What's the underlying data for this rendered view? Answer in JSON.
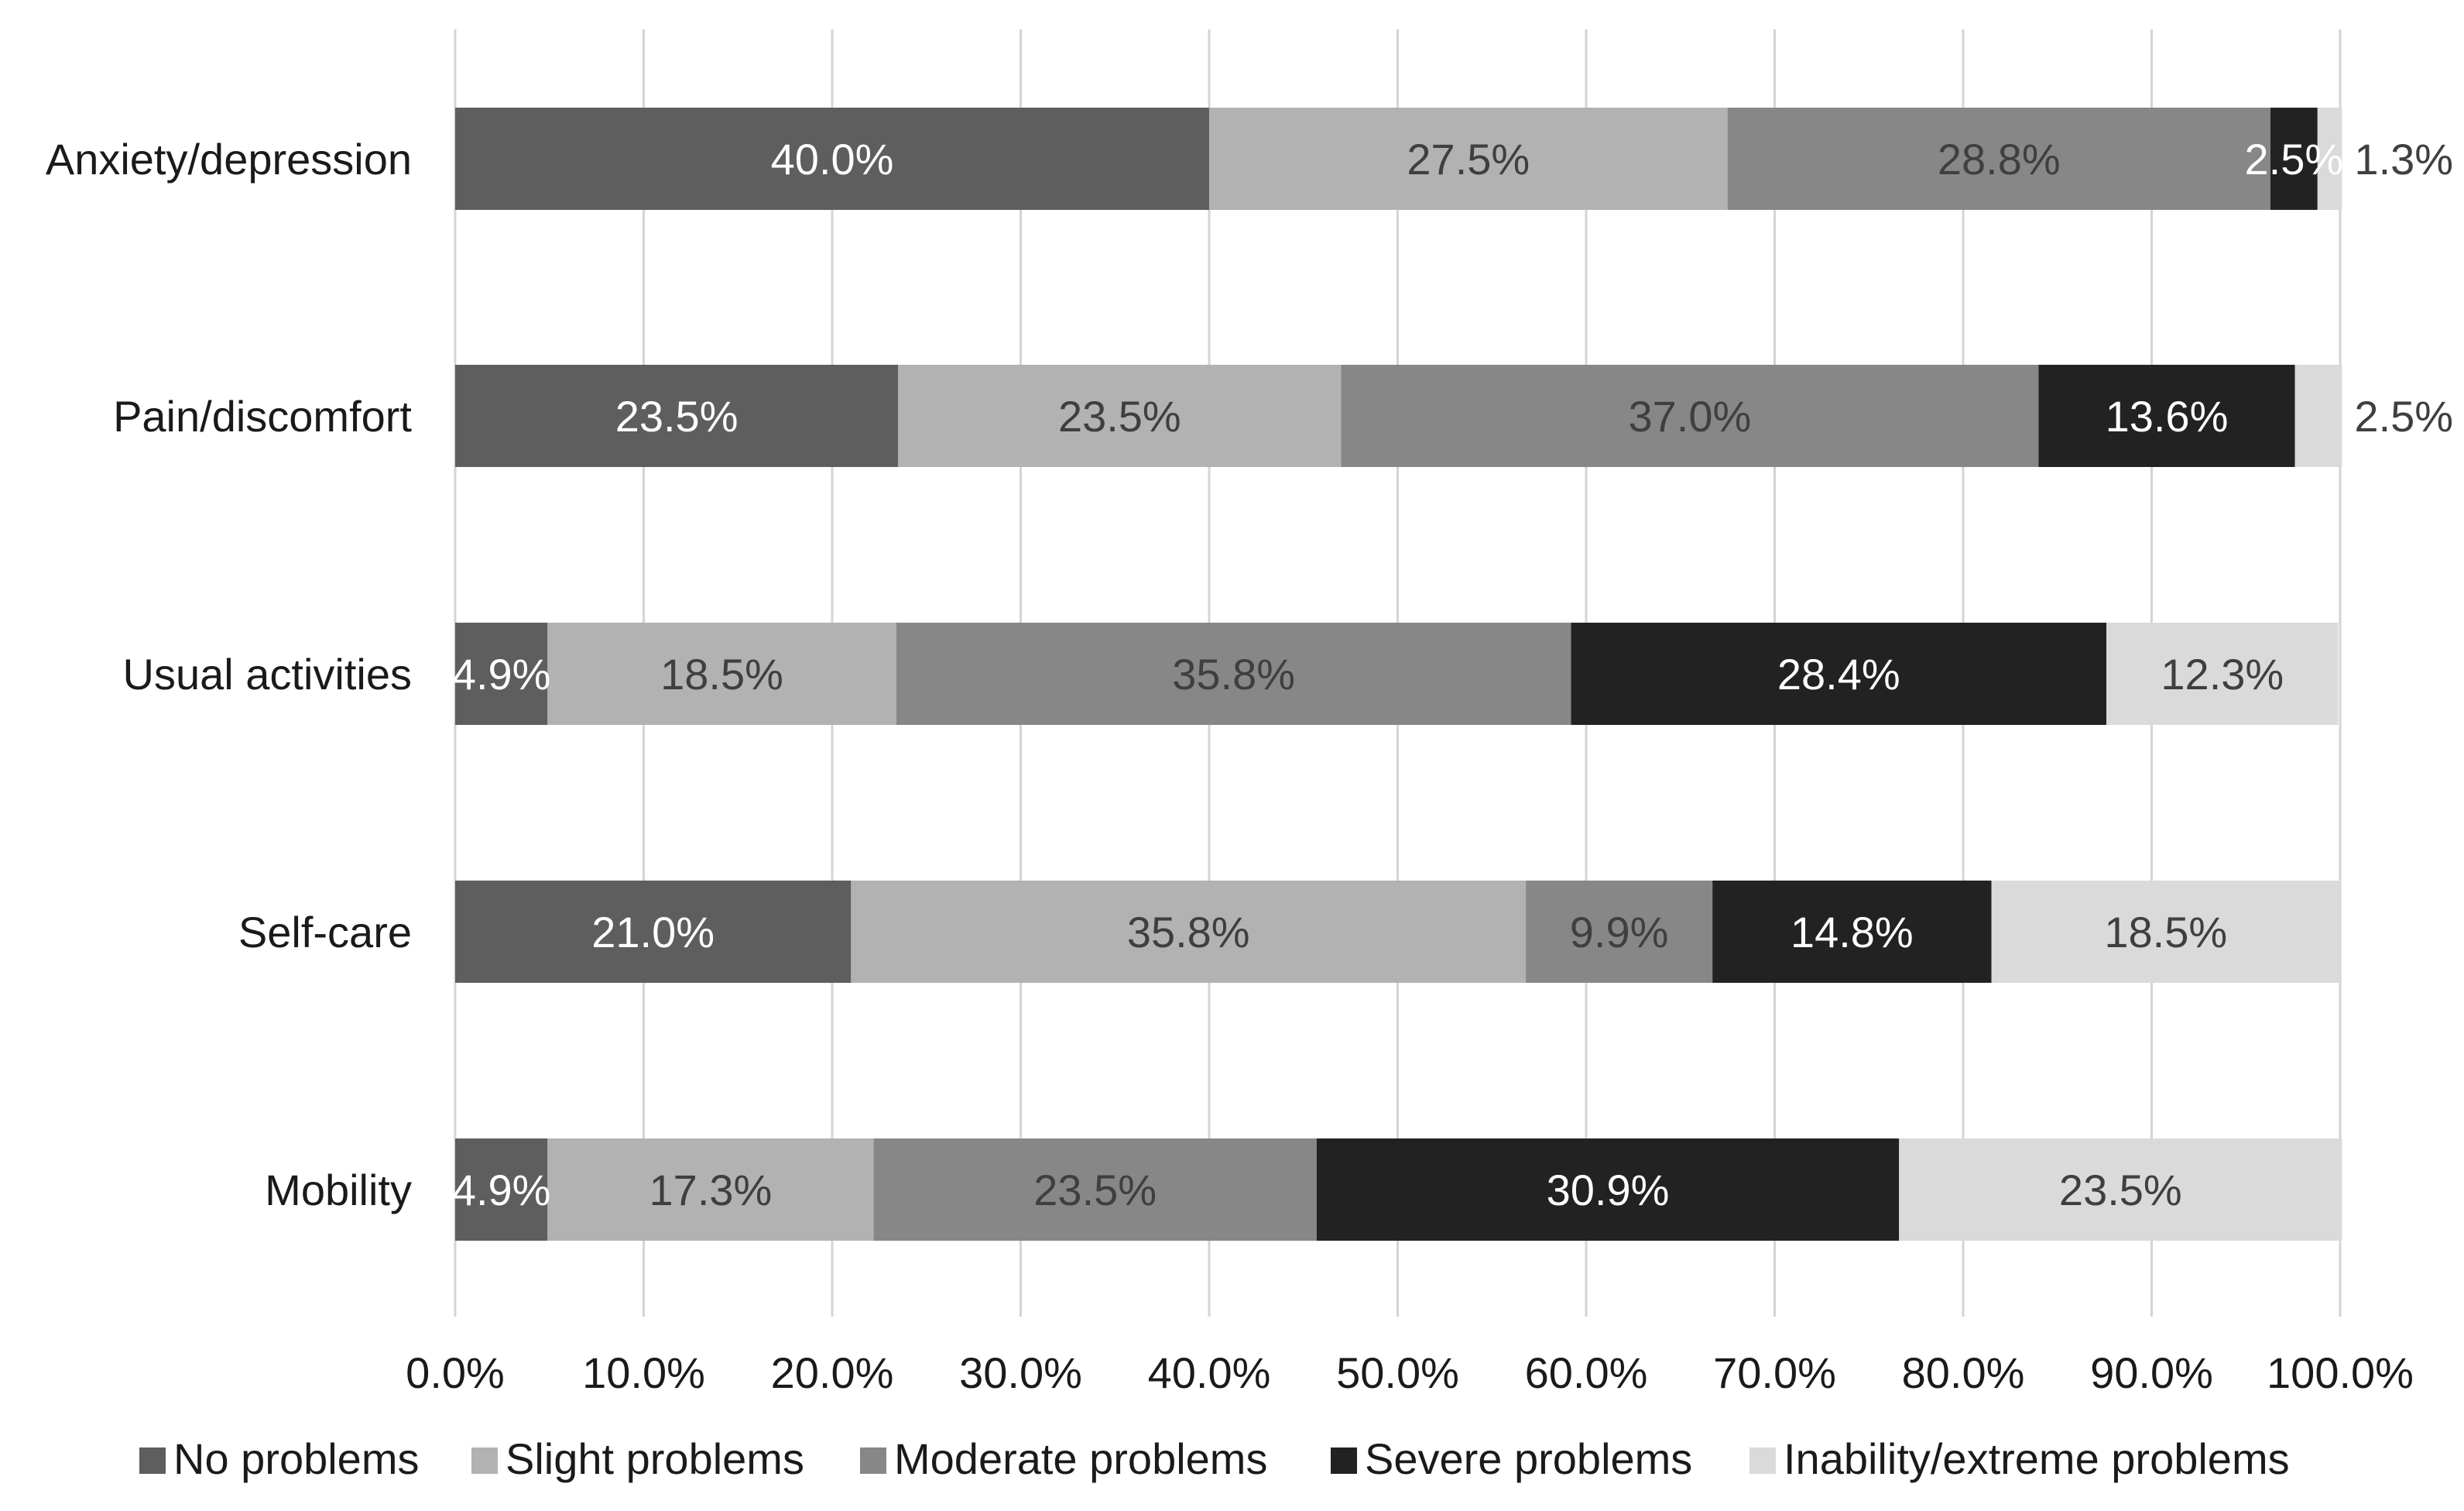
{
  "chart_data": {
    "type": "bar",
    "orientation": "horizontal",
    "stacked": true,
    "categories": [
      "Anxiety/depression",
      "Pain/discomfort",
      "Usual activities",
      "Self-care",
      "Mobility"
    ],
    "series": [
      {
        "name": "No problems",
        "color": "#5e5e5e",
        "label_color": "#ffffff",
        "values": [
          40.0,
          23.5,
          4.9,
          21.0,
          4.9
        ],
        "labels": [
          "40.0%",
          "23.5%",
          "4.9%",
          "21.0%",
          "4.9%"
        ]
      },
      {
        "name": "Slight problems",
        "color": "#b2b2b2",
        "label_color": "#3f3f3f",
        "values": [
          27.5,
          23.5,
          18.5,
          35.8,
          17.3
        ],
        "labels": [
          "27.5%",
          "23.5%",
          "18.5%",
          "35.8%",
          "17.3%"
        ]
      },
      {
        "name": "Moderate problems",
        "color": "#878787",
        "label_color": "#3f3f3f",
        "values": [
          28.8,
          37.0,
          35.8,
          9.9,
          23.5
        ],
        "labels": [
          "28.8%",
          "37.0%",
          "35.8%",
          "9.9%",
          "23.5%"
        ]
      },
      {
        "name": "Severe problems",
        "color": "#222222",
        "label_color": "#ffffff",
        "values": [
          2.5,
          13.6,
          28.4,
          14.8,
          30.9
        ],
        "labels": [
          "2.5%",
          "13.6%",
          "28.4%",
          "14.8%",
          "30.9%"
        ]
      },
      {
        "name": "Inability/extreme problems",
        "color": "#dadada",
        "label_color": "#3f3f3f",
        "values": [
          1.3,
          2.5,
          12.3,
          18.5,
          23.5
        ],
        "labels": [
          "1.3%",
          "2.5%",
          "12.3%",
          "18.5%",
          "23.5%"
        ]
      }
    ],
    "x_ticks": [
      "0.0%",
      "10.0%",
      "20.0%",
      "30.0%",
      "40.0%",
      "50.0%",
      "60.0%",
      "70.0%",
      "80.0%",
      "90.0%",
      "100.0%"
    ],
    "xlim": [
      0,
      100
    ],
    "grid": "vertical",
    "legend_position": "bottom",
    "title": "",
    "xlabel": "",
    "ylabel": ""
  }
}
